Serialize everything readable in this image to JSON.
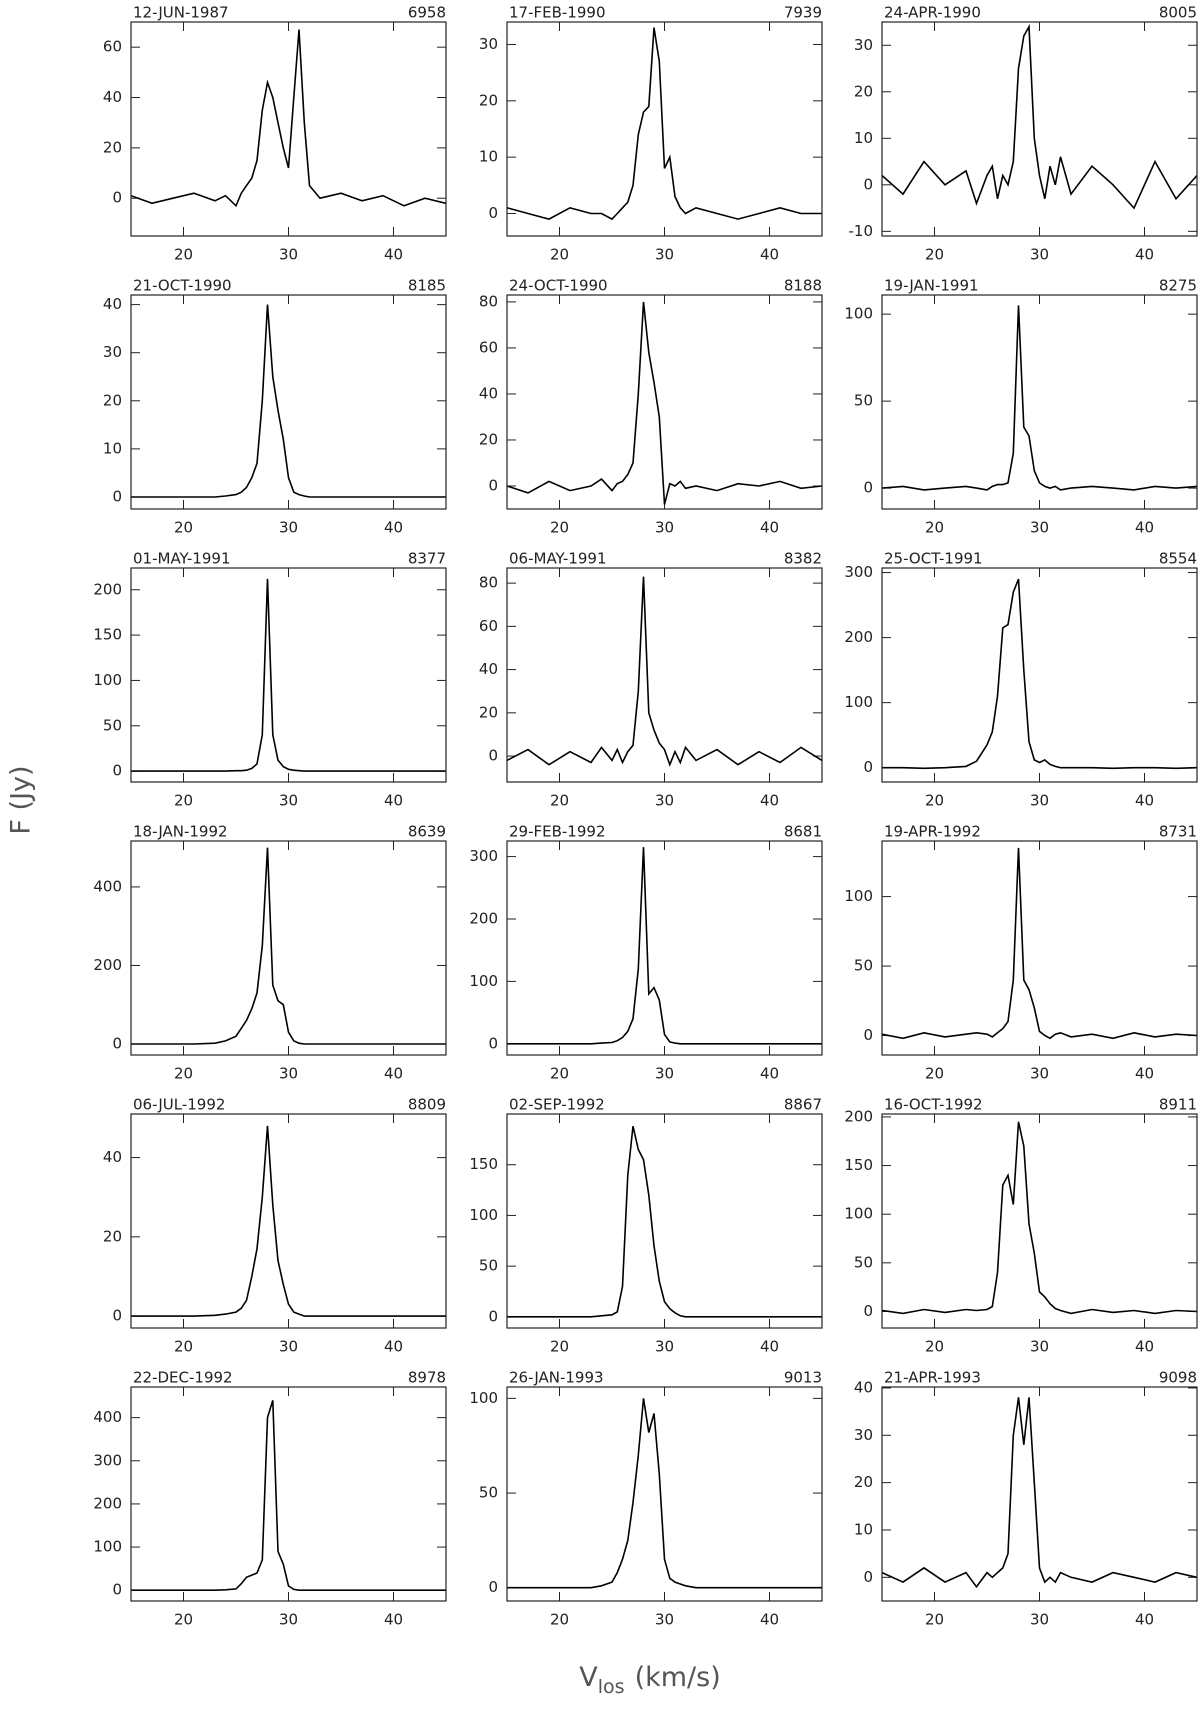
{
  "figure": {
    "ylabel": "F (Jy)",
    "xlabel": {
      "main": "V",
      "sub": "los",
      "unit": "(km/s)"
    }
  },
  "chart_data": [
    {
      "type": "line",
      "title": "12-JUN-1987",
      "subtitle": "6958",
      "color": "#000000",
      "xlim": [
        15,
        45
      ],
      "xticks": [
        20,
        30,
        40
      ],
      "ylim": [
        -15,
        70
      ],
      "yticks": [
        0,
        20,
        40,
        60
      ],
      "x": [
        15,
        17,
        19,
        21,
        23,
        24,
        25,
        25.5,
        26,
        26.5,
        27,
        27.5,
        28,
        28.5,
        29,
        29.5,
        30,
        30.5,
        31,
        31.5,
        32,
        33,
        35,
        37,
        39,
        41,
        43,
        45
      ],
      "values": [
        1,
        -2,
        0,
        2,
        -1,
        1,
        -3,
        2,
        5,
        8,
        15,
        35,
        46,
        40,
        30,
        20,
        12,
        40,
        67,
        30,
        5,
        0,
        2,
        -1,
        1,
        -3,
        0,
        -2
      ]
    },
    {
      "type": "line",
      "title": "17-FEB-1990",
      "subtitle": "7939",
      "color": "#000000",
      "xlim": [
        15,
        45
      ],
      "xticks": [
        20,
        30,
        40
      ],
      "ylim": [
        -4,
        34
      ],
      "yticks": [
        0,
        10,
        20,
        30
      ],
      "x": [
        15,
        17,
        19,
        21,
        23,
        24,
        25,
        25.5,
        26,
        26.5,
        27,
        27.5,
        28,
        28.5,
        29,
        29.5,
        30,
        30.5,
        31,
        31.5,
        32,
        33,
        35,
        37,
        39,
        41,
        43,
        45
      ],
      "values": [
        1,
        0,
        -1,
        1,
        0,
        0,
        -1,
        0,
        1,
        2,
        5,
        14,
        18,
        19,
        33,
        27,
        8,
        10,
        3,
        1,
        0,
        1,
        0,
        -1,
        0,
        1,
        0,
        0
      ]
    },
    {
      "type": "line",
      "title": "24-APR-1990",
      "subtitle": "8005",
      "color": "#000000",
      "xlim": [
        15,
        45
      ],
      "xticks": [
        20,
        30,
        40
      ],
      "ylim": [
        -11,
        35
      ],
      "yticks": [
        -10,
        0,
        10,
        20,
        30
      ],
      "x": [
        15,
        17,
        19,
        21,
        23,
        24,
        25,
        25.5,
        26,
        26.5,
        27,
        27.5,
        28,
        28.5,
        29,
        29.5,
        30,
        30.5,
        31,
        31.5,
        32,
        33,
        35,
        37,
        39,
        41,
        43,
        45
      ],
      "values": [
        2,
        -2,
        5,
        0,
        3,
        -4,
        2,
        4,
        -3,
        2,
        0,
        5,
        25,
        32,
        34,
        10,
        2,
        -3,
        4,
        0,
        6,
        -2,
        4,
        0,
        -5,
        5,
        -3,
        2
      ]
    },
    {
      "type": "line",
      "title": "21-OCT-1990",
      "subtitle": "8185",
      "color": "#000000",
      "xlim": [
        15,
        45
      ],
      "xticks": [
        20,
        30,
        40
      ],
      "ylim": [
        -2.5,
        42
      ],
      "yticks": [
        0,
        10,
        20,
        30,
        40
      ],
      "x": [
        15,
        17,
        19,
        21,
        23,
        24,
        25,
        25.5,
        26,
        26.5,
        27,
        27.5,
        28,
        28.5,
        29,
        29.5,
        30,
        30.5,
        31,
        31.5,
        32,
        33,
        35,
        37,
        39,
        41,
        43,
        45
      ],
      "values": [
        0,
        0,
        0,
        0,
        0,
        0.2,
        0.5,
        1,
        2,
        4,
        7,
        20,
        40,
        25,
        18,
        12,
        4,
        1,
        0.5,
        0.2,
        0,
        0,
        0,
        0,
        0,
        0,
        0,
        0
      ]
    },
    {
      "type": "line",
      "title": "24-OCT-1990",
      "subtitle": "8188",
      "color": "#000000",
      "xlim": [
        15,
        45
      ],
      "xticks": [
        20,
        30,
        40
      ],
      "ylim": [
        -10,
        83
      ],
      "yticks": [
        0,
        20,
        40,
        60,
        80
      ],
      "x": [
        15,
        17,
        19,
        21,
        23,
        24,
        25,
        25.5,
        26,
        26.5,
        27,
        27.5,
        28,
        28.5,
        29,
        29.5,
        30,
        30.5,
        31,
        31.5,
        32,
        33,
        35,
        37,
        39,
        41,
        43,
        45
      ],
      "values": [
        0,
        -3,
        2,
        -2,
        0,
        3,
        -2,
        1,
        2,
        5,
        10,
        40,
        80,
        58,
        45,
        30,
        -8,
        1,
        0,
        2,
        -1,
        0,
        -2,
        1,
        0,
        2,
        -1,
        0
      ]
    },
    {
      "type": "line",
      "title": "19-JAN-1991",
      "subtitle": "8275",
      "color": "#000000",
      "xlim": [
        15,
        45
      ],
      "xticks": [
        20,
        30,
        40
      ],
      "ylim": [
        -12,
        111
      ],
      "yticks": [
        0,
        50,
        100
      ],
      "x": [
        15,
        17,
        19,
        21,
        23,
        24,
        25,
        25.5,
        26,
        26.5,
        27,
        27.5,
        28,
        28.5,
        29,
        29.5,
        30,
        30.5,
        31,
        31.5,
        32,
        33,
        35,
        37,
        39,
        41,
        43,
        45
      ],
      "values": [
        0,
        1,
        -1,
        0,
        1,
        0,
        -1,
        1,
        2,
        2,
        3,
        20,
        105,
        35,
        30,
        10,
        3,
        1,
        0,
        1,
        -1,
        0,
        1,
        0,
        -1,
        1,
        0,
        1
      ]
    },
    {
      "type": "line",
      "title": "01-MAY-1991",
      "subtitle": "8377",
      "color": "#000000",
      "xlim": [
        15,
        45
      ],
      "xticks": [
        20,
        30,
        40
      ],
      "ylim": [
        -12,
        224
      ],
      "yticks": [
        0,
        50,
        100,
        150,
        200
      ],
      "x": [
        15,
        17,
        19,
        21,
        23,
        24,
        25,
        25.5,
        26,
        26.5,
        27,
        27.5,
        28,
        28.5,
        29,
        29.5,
        30,
        30.5,
        31,
        31.5,
        32,
        33,
        35,
        37,
        39,
        41,
        43,
        45
      ],
      "values": [
        0,
        0,
        0,
        0,
        0,
        0,
        0.5,
        0.5,
        1,
        3,
        8,
        40,
        212,
        40,
        12,
        5,
        2,
        1,
        0.5,
        0,
        0,
        0,
        0,
        0,
        0,
        0,
        0,
        0
      ]
    },
    {
      "type": "line",
      "title": "06-MAY-1991",
      "subtitle": "8382",
      "color": "#000000",
      "xlim": [
        15,
        45
      ],
      "xticks": [
        20,
        30,
        40
      ],
      "ylim": [
        -12,
        87
      ],
      "yticks": [
        0,
        20,
        40,
        60,
        80
      ],
      "x": [
        15,
        17,
        19,
        21,
        23,
        24,
        25,
        25.5,
        26,
        26.5,
        27,
        27.5,
        28,
        28.5,
        29,
        29.5,
        30,
        30.5,
        31,
        31.5,
        32,
        33,
        35,
        37,
        39,
        41,
        43,
        45
      ],
      "values": [
        -2,
        3,
        -4,
        2,
        -3,
        4,
        -2,
        3,
        -3,
        2,
        5,
        30,
        83,
        20,
        12,
        6,
        3,
        -4,
        2,
        -3,
        4,
        -2,
        3,
        -4,
        2,
        -3,
        4,
        -2
      ]
    },
    {
      "type": "line",
      "title": "25-OCT-1991",
      "subtitle": "8554",
      "color": "#000000",
      "xlim": [
        15,
        45
      ],
      "xticks": [
        20,
        30,
        40
      ],
      "ylim": [
        -22,
        307
      ],
      "yticks": [
        0,
        100,
        200,
        300
      ],
      "x": [
        15,
        17,
        19,
        21,
        23,
        24,
        25,
        25.5,
        26,
        26.5,
        27,
        27.5,
        28,
        28.5,
        29,
        29.5,
        30,
        30.5,
        31,
        31.5,
        32,
        33,
        35,
        37,
        39,
        41,
        43,
        45
      ],
      "values": [
        0,
        0,
        -1,
        0,
        2,
        10,
        35,
        55,
        110,
        215,
        220,
        270,
        290,
        150,
        40,
        12,
        8,
        12,
        5,
        2,
        0,
        0,
        0,
        -1,
        0,
        0,
        -1,
        0
      ]
    },
    {
      "type": "line",
      "title": "18-JAN-1992",
      "subtitle": "8639",
      "color": "#000000",
      "xlim": [
        15,
        45
      ],
      "xticks": [
        20,
        30,
        40
      ],
      "ylim": [
        -28,
        517
      ],
      "yticks": [
        0,
        200,
        400
      ],
      "x": [
        15,
        17,
        19,
        21,
        23,
        24,
        25,
        25.5,
        26,
        26.5,
        27,
        27.5,
        28,
        28.5,
        29,
        29.5,
        30,
        30.5,
        31,
        31.5,
        32,
        33,
        35,
        37,
        39,
        41,
        43,
        45
      ],
      "values": [
        0,
        0,
        0,
        0,
        2,
        8,
        20,
        40,
        60,
        90,
        130,
        250,
        500,
        150,
        110,
        100,
        30,
        8,
        2,
        0,
        0,
        0,
        0,
        0,
        0,
        0,
        0,
        0
      ]
    },
    {
      "type": "line",
      "title": "29-FEB-1992",
      "subtitle": "8681",
      "color": "#000000",
      "xlim": [
        15,
        45
      ],
      "xticks": [
        20,
        30,
        40
      ],
      "ylim": [
        -18,
        325
      ],
      "yticks": [
        0,
        100,
        200,
        300
      ],
      "x": [
        15,
        17,
        19,
        21,
        23,
        24,
        25,
        25.5,
        26,
        26.5,
        27,
        27.5,
        28,
        28.5,
        29,
        29.5,
        30,
        30.5,
        31,
        31.5,
        32,
        33,
        35,
        37,
        39,
        41,
        43,
        45
      ],
      "values": [
        0,
        0,
        0,
        0,
        0,
        1,
        2,
        5,
        10,
        20,
        40,
        120,
        315,
        80,
        90,
        70,
        15,
        3,
        1,
        0,
        0,
        0,
        0,
        0,
        0,
        0,
        0,
        0
      ]
    },
    {
      "type": "line",
      "title": "19-APR-1992",
      "subtitle": "8731",
      "color": "#000000",
      "xlim": [
        15,
        45
      ],
      "xticks": [
        20,
        30,
        40
      ],
      "ylim": [
        -14,
        140
      ],
      "yticks": [
        0,
        50,
        100
      ],
      "x": [
        15,
        17,
        19,
        21,
        23,
        24,
        25,
        25.5,
        26,
        26.5,
        27,
        27.5,
        28,
        28.5,
        29,
        29.5,
        30,
        30.5,
        31,
        31.5,
        32,
        33,
        35,
        37,
        39,
        41,
        43,
        45
      ],
      "values": [
        1,
        -2,
        2,
        -1,
        1,
        2,
        1,
        -1,
        2,
        5,
        10,
        40,
        135,
        40,
        33,
        20,
        3,
        0,
        -2,
        1,
        2,
        -1,
        1,
        -2,
        2,
        -1,
        1,
        0
      ]
    },
    {
      "type": "line",
      "title": "06-JUL-1992",
      "subtitle": "8809",
      "color": "#000000",
      "xlim": [
        15,
        45
      ],
      "xticks": [
        20,
        30,
        40
      ],
      "ylim": [
        -3,
        51
      ],
      "yticks": [
        0,
        20,
        40
      ],
      "x": [
        15,
        17,
        19,
        21,
        23,
        24,
        25,
        25.5,
        26,
        26.5,
        27,
        27.5,
        28,
        28.5,
        29,
        29.5,
        30,
        30.5,
        31,
        31.5,
        32,
        33,
        35,
        37,
        39,
        41,
        43,
        45
      ],
      "values": [
        0,
        0,
        0,
        0,
        0.2,
        0.5,
        1,
        2,
        4,
        10,
        17,
        30,
        48,
        28,
        14,
        8,
        3,
        1,
        0.5,
        0,
        0,
        0,
        0,
        0,
        0,
        0,
        0,
        0
      ]
    },
    {
      "type": "line",
      "title": "02-SEP-1992",
      "subtitle": "8867",
      "color": "#000000",
      "xlim": [
        15,
        45
      ],
      "xticks": [
        20,
        30,
        40
      ],
      "ylim": [
        -11,
        200
      ],
      "yticks": [
        0,
        50,
        100,
        150
      ],
      "x": [
        15,
        17,
        19,
        21,
        23,
        24,
        25,
        25.5,
        26,
        26.5,
        27,
        27.5,
        28,
        28.5,
        29,
        29.5,
        30,
        30.5,
        31,
        31.5,
        32,
        33,
        35,
        37,
        39,
        41,
        43,
        45
      ],
      "values": [
        0,
        0,
        0,
        0,
        0,
        1,
        2,
        5,
        30,
        140,
        188,
        165,
        155,
        120,
        70,
        35,
        15,
        8,
        4,
        1,
        0,
        0,
        0,
        0,
        0,
        0,
        0,
        0
      ]
    },
    {
      "type": "line",
      "title": "16-OCT-1992",
      "subtitle": "8911",
      "color": "#000000",
      "xlim": [
        15,
        45
      ],
      "xticks": [
        20,
        30,
        40
      ],
      "ylim": [
        -17,
        203
      ],
      "yticks": [
        0,
        50,
        100,
        150,
        200
      ],
      "x": [
        15,
        17,
        19,
        21,
        23,
        24,
        25,
        25.5,
        26,
        26.5,
        27,
        27.5,
        28,
        28.5,
        29,
        29.5,
        30,
        30.5,
        31,
        31.5,
        32,
        33,
        35,
        37,
        39,
        41,
        43,
        45
      ],
      "values": [
        1,
        -2,
        2,
        -1,
        2,
        1,
        2,
        5,
        40,
        130,
        140,
        110,
        195,
        170,
        90,
        60,
        20,
        15,
        8,
        3,
        1,
        -2,
        2,
        -1,
        1,
        -2,
        1,
        0
      ]
    },
    {
      "type": "line",
      "title": "22-DEC-1992",
      "subtitle": "8978",
      "color": "#000000",
      "xlim": [
        15,
        45
      ],
      "xticks": [
        20,
        30,
        40
      ],
      "ylim": [
        -25,
        471
      ],
      "yticks": [
        0,
        100,
        200,
        300,
        400
      ],
      "x": [
        15,
        17,
        19,
        21,
        23,
        24,
        25,
        25.5,
        26,
        26.5,
        27,
        27.5,
        28,
        28.5,
        29,
        29.5,
        30,
        30.5,
        31,
        31.5,
        32,
        33,
        35,
        37,
        39,
        41,
        43,
        45
      ],
      "values": [
        0,
        0,
        0,
        0,
        0,
        1,
        3,
        15,
        30,
        35,
        40,
        70,
        400,
        440,
        90,
        60,
        10,
        2,
        0,
        0,
        0,
        0,
        0,
        0,
        0,
        0,
        0,
        0
      ]
    },
    {
      "type": "line",
      "title": "26-JAN-1993",
      "subtitle": "9013",
      "color": "#000000",
      "xlim": [
        15,
        45
      ],
      "xticks": [
        20,
        30,
        40
      ],
      "ylim": [
        -7,
        106
      ],
      "yticks": [
        0,
        50,
        100
      ],
      "x": [
        15,
        17,
        19,
        21,
        23,
        24,
        25,
        25.5,
        26,
        26.5,
        27,
        27.5,
        28,
        28.5,
        29,
        29.5,
        30,
        30.5,
        31,
        31.5,
        32,
        33,
        35,
        37,
        39,
        41,
        43,
        45
      ],
      "values": [
        0,
        0,
        0,
        0,
        0,
        1,
        3,
        8,
        15,
        25,
        45,
        70,
        100,
        82,
        92,
        60,
        15,
        5,
        3,
        2,
        1,
        0,
        0,
        0,
        0,
        0,
        0,
        0
      ]
    },
    {
      "type": "line",
      "title": "21-APR-1993",
      "subtitle": "9098",
      "color": "#000000",
      "xlim": [
        15,
        45
      ],
      "xticks": [
        20,
        30,
        40
      ],
      "ylim": [
        -5,
        40.2
      ],
      "yticks": [
        0,
        10,
        20,
        30,
        40
      ],
      "x": [
        15,
        17,
        19,
        21,
        23,
        24,
        25,
        25.5,
        26,
        26.5,
        27,
        27.5,
        28,
        28.5,
        29,
        29.5,
        30,
        30.5,
        31,
        31.5,
        32,
        33,
        35,
        37,
        39,
        41,
        43,
        45
      ],
      "values": [
        1,
        -1,
        2,
        -1,
        1,
        -2,
        1,
        0,
        1,
        2,
        5,
        30,
        38,
        28,
        38,
        20,
        2,
        -1,
        0,
        -1,
        1,
        0,
        -1,
        1,
        0,
        -1,
        1,
        0
      ]
    }
  ]
}
